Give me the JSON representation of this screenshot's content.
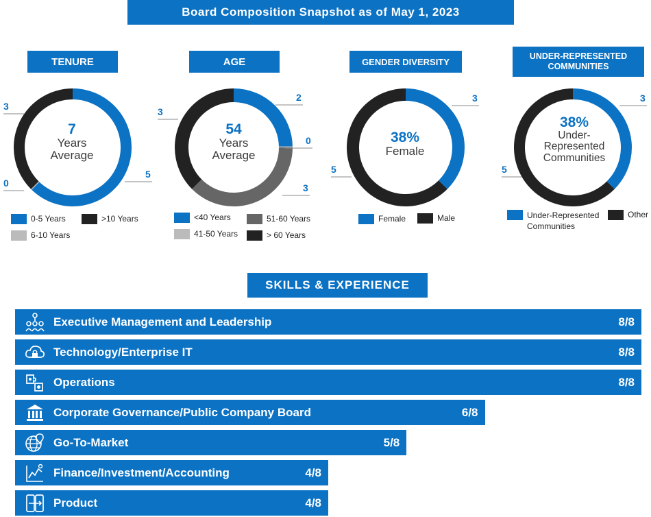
{
  "header": {
    "title": "Board Composition Snapshot as of May 1, 2023"
  },
  "colors": {
    "blue": "#0b72c4",
    "black": "#222222",
    "gray": "#666666",
    "lightgray": "#bbbbbb"
  },
  "chart_data": [
    {
      "type": "pie",
      "title": "TENURE",
      "center": {
        "big": "7",
        "sub1": "Years",
        "sub2": "Average"
      },
      "categories": [
        "0-5 Years",
        "6-10 Years",
        ">10 Years"
      ],
      "values": [
        5,
        0,
        3
      ],
      "value_labels": [
        "5",
        "0",
        "3"
      ],
      "colors": [
        "#0b72c4",
        "#bbbbbb",
        "#222222"
      ]
    },
    {
      "type": "pie",
      "title": "AGE",
      "center": {
        "big": "54",
        "sub1": "Years",
        "sub2": "Average"
      },
      "categories": [
        "<40 Years",
        "41-50 Years",
        "51-60 Years",
        "> 60 Years"
      ],
      "values": [
        2,
        0,
        3,
        3
      ],
      "value_labels": [
        "2",
        "0",
        "3",
        "3"
      ],
      "colors": [
        "#0b72c4",
        "#bbbbbb",
        "#666666",
        "#222222"
      ]
    },
    {
      "type": "pie",
      "title": "GENDER DIVERSITY",
      "center": {
        "big": "38%",
        "sub1": "Female",
        "sub2": ""
      },
      "categories": [
        "Female",
        "Male"
      ],
      "values": [
        3,
        5
      ],
      "value_labels": [
        "3",
        "5"
      ],
      "colors": [
        "#0b72c4",
        "#222222"
      ]
    },
    {
      "type": "pie",
      "title_line1": "UNDER-REPRESENTED",
      "title_line2": "COMMUNITIES",
      "center": {
        "big": "38%",
        "sub1": "Under-",
        "sub2": "Represented",
        "sub3": "Communities"
      },
      "categories": [
        "Under-Represented Communities",
        "Other"
      ],
      "legend_line1": "Under-Represented",
      "legend_line2": "Communities",
      "values": [
        3,
        5
      ],
      "value_labels": [
        "3",
        "5"
      ],
      "colors": [
        "#0b72c4",
        "#222222"
      ]
    },
    {
      "type": "bar",
      "title": "SKILLS & EXPERIENCE",
      "xlim": [
        0,
        8
      ],
      "categories": [
        "Executive Management and Leadership",
        "Technology/Enterprise IT",
        "Operations",
        "Corporate Governance/Public Company Board",
        "Go-To-Market",
        "Finance/Investment/Accounting",
        "Product"
      ],
      "values": [
        8,
        8,
        8,
        6,
        5,
        4,
        4
      ],
      "value_labels": [
        "8/8",
        "8/8",
        "8/8",
        "6/8",
        "5/8",
        "4/8",
        "4/8"
      ],
      "icons": [
        "people-network-icon",
        "cloud-lock-icon",
        "operations-puzzle-icon",
        "government-building-icon",
        "globe-pin-icon",
        "finance-chart-icon",
        "product-phone-icon"
      ]
    }
  ]
}
